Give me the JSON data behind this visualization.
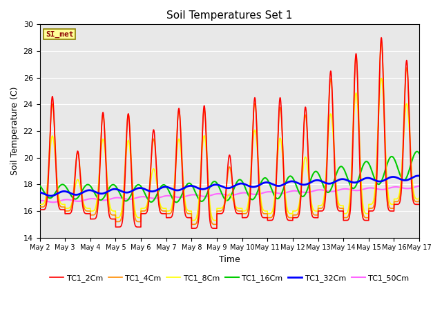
{
  "title": "Soil Temperatures Set 1",
  "xlabel": "Time",
  "ylabel": "Soil Temperature (C)",
  "ylim": [
    14,
    30
  ],
  "xlim_days": [
    0,
    15
  ],
  "x_ticks": [
    0,
    1,
    2,
    3,
    4,
    5,
    6,
    7,
    8,
    9,
    10,
    11,
    12,
    13,
    14,
    15
  ],
  "x_tick_labels": [
    "May 2",
    "May 3",
    "May 4",
    "May 5",
    "May 6",
    "May 7",
    "May 8",
    "May 9",
    "May 10",
    "May 11",
    "May 12",
    "May 13",
    "May 14",
    "May 15",
    "May 16",
    "May 17"
  ],
  "series": [
    {
      "label": "TC1_2Cm",
      "color": "#FF0000",
      "linewidth": 1.2,
      "zorder": 6
    },
    {
      "label": "TC1_4Cm",
      "color": "#FF8C00",
      "linewidth": 1.2,
      "zorder": 5
    },
    {
      "label": "TC1_8Cm",
      "color": "#FFFF00",
      "linewidth": 1.2,
      "zorder": 4
    },
    {
      "label": "TC1_16Cm",
      "color": "#00CC00",
      "linewidth": 1.5,
      "zorder": 3
    },
    {
      "label": "TC1_32Cm",
      "color": "#0000FF",
      "linewidth": 2.0,
      "zorder": 7
    },
    {
      "label": "TC1_50Cm",
      "color": "#FF66FF",
      "linewidth": 1.5,
      "zorder": 2
    }
  ],
  "annotation_text": "SI_met",
  "bg_color": "#E8E8E8",
  "legend_ncol": 6,
  "fig_width": 6.4,
  "fig_height": 4.8,
  "dpi": 100
}
